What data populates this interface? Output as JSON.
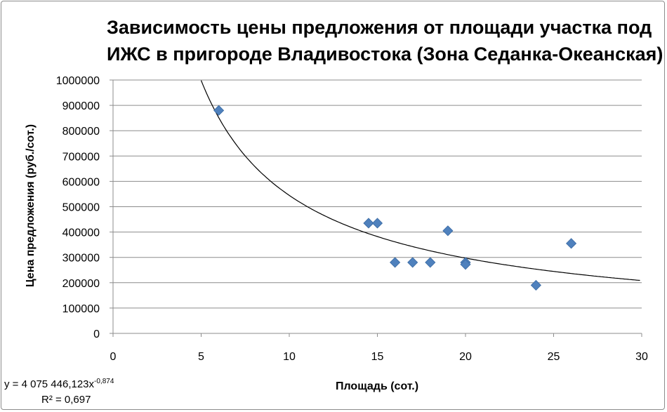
{
  "chart_data": {
    "type": "scatter",
    "title_line1": "Зависимость цены предложения от площади участка под",
    "title_line2": "ИЖС в пригороде Владивостока  (Зона Седанка-Океанская)",
    "xlabel": "Площадь (сот.)",
    "ylabel": "Цена предложения (руб./сот.)",
    "xlim": [
      0,
      30
    ],
    "ylim": [
      0,
      1000000
    ],
    "x_ticks": [
      "0",
      "5",
      "10",
      "15",
      "20",
      "25",
      "30"
    ],
    "y_ticks": [
      "0",
      "100000",
      "200000",
      "300000",
      "400000",
      "500000",
      "600000",
      "700000",
      "800000",
      "900000",
      "1000000"
    ],
    "grid": "horizontal",
    "marker": "diamond",
    "marker_color": "#4f81bd",
    "series": [
      {
        "x": [
          6,
          14.5,
          15,
          16,
          17,
          18,
          19,
          20,
          20,
          24,
          26
        ],
        "y": [
          880000,
          435000,
          435000,
          280000,
          280000,
          280000,
          405000,
          280000,
          272000,
          190000,
          355000
        ]
      }
    ],
    "trendline": {
      "type": "power",
      "a": 4075446.123,
      "b": -0.874,
      "equation_prefix": "y = 4 075 446,123x",
      "equation_exponent": "-0,874",
      "r2_label": "R² = 0,697"
    }
  }
}
